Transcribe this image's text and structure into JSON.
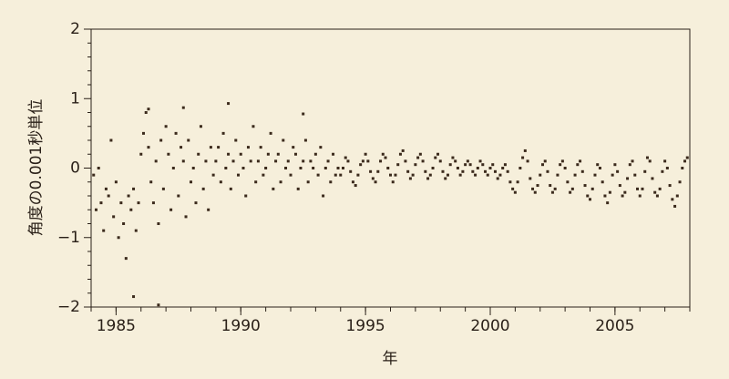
{
  "chart_data": {
    "type": "scatter",
    "ylabel": "角度の0.001秒単位",
    "xlabel": "年",
    "color": "#3b2a1c",
    "background": "#f6efdb",
    "xlim": [
      1984,
      2008
    ],
    "ylim": [
      -2,
      2
    ],
    "xticks": [
      1985,
      1990,
      1995,
      2000,
      2005
    ],
    "yticks": [
      {
        "value": -2,
        "label": "−2"
      },
      {
        "value": -1,
        "label": "−1"
      },
      0,
      1,
      2
    ],
    "xminorticks": [
      1984,
      1985,
      1986,
      1987,
      1988,
      1989,
      1990,
      1991,
      1992,
      1993,
      1994,
      1995,
      1996,
      1997,
      1998,
      1999,
      2000,
      2001,
      2002,
      2003,
      2004,
      2005,
      2006,
      2007,
      2008
    ],
    "yminorticks": [
      -1.8,
      -1.6,
      -1.4,
      -1.2,
      -0.8,
      -0.6,
      -0.4,
      -0.2,
      0.2,
      0.4,
      0.6,
      0.8,
      1.2,
      1.4,
      1.6,
      1.8
    ],
    "x": [
      1984.1,
      1984.2,
      1984.3,
      1984.4,
      1984.5,
      1984.6,
      1984.7,
      1984.8,
      1984.9,
      1985.0,
      1985.1,
      1985.2,
      1985.3,
      1985.4,
      1985.5,
      1985.6,
      1985.7,
      1985.8,
      1985.9,
      1986.0,
      1986.1,
      1986.2,
      1986.3,
      1986.4,
      1986.5,
      1986.6,
      1986.7,
      1986.8,
      1986.9,
      1987.0,
      1987.1,
      1987.2,
      1987.3,
      1987.4,
      1987.5,
      1987.6,
      1987.7,
      1987.8,
      1987.9,
      1988.0,
      1988.1,
      1988.2,
      1988.3,
      1988.4,
      1988.5,
      1988.6,
      1988.7,
      1988.8,
      1988.9,
      1989.0,
      1989.1,
      1989.2,
      1989.3,
      1989.4,
      1989.5,
      1989.6,
      1989.7,
      1989.8,
      1989.9,
      1990.0,
      1990.1,
      1990.2,
      1990.3,
      1990.4,
      1990.5,
      1990.6,
      1990.7,
      1990.8,
      1990.9,
      1991.0,
      1991.1,
      1991.2,
      1991.3,
      1991.4,
      1991.5,
      1991.6,
      1991.7,
      1991.8,
      1991.9,
      1992.0,
      1992.1,
      1992.2,
      1992.3,
      1992.4,
      1992.5,
      1992.6,
      1992.7,
      1992.8,
      1992.9,
      1993.0,
      1993.1,
      1993.2,
      1993.3,
      1993.4,
      1993.5,
      1993.6,
      1993.7,
      1993.8,
      1993.9,
      1994.0,
      1994.1,
      1994.2,
      1994.3,
      1994.4,
      1994.5,
      1994.6,
      1994.7,
      1994.8,
      1994.9,
      1995.0,
      1995.1,
      1995.2,
      1995.3,
      1995.4,
      1995.5,
      1995.6,
      1995.7,
      1995.8,
      1995.9,
      1996.0,
      1996.1,
      1996.2,
      1996.3,
      1996.4,
      1996.5,
      1996.6,
      1996.7,
      1996.8,
      1996.9,
      1997.0,
      1997.1,
      1997.2,
      1997.3,
      1997.4,
      1997.5,
      1997.6,
      1997.7,
      1997.8,
      1997.9,
      1998.0,
      1998.1,
      1998.2,
      1998.3,
      1998.4,
      1998.5,
      1998.6,
      1998.7,
      1998.8,
      1998.9,
      1999.0,
      1999.1,
      1999.2,
      1999.3,
      1999.4,
      1999.5,
      1999.6,
      1999.7,
      1999.8,
      1999.9,
      2000.0,
      2000.1,
      2000.2,
      2000.3,
      2000.4,
      2000.5,
      2000.6,
      2000.7,
      2000.8,
      2000.9,
      2001.0,
      2001.1,
      2001.2,
      2001.3,
      2001.4,
      2001.5,
      2001.6,
      2001.7,
      2001.8,
      2001.9,
      2002.0,
      2002.1,
      2002.2,
      2002.3,
      2002.4,
      2002.5,
      2002.6,
      2002.7,
      2002.8,
      2002.9,
      2003.0,
      2003.1,
      2003.2,
      2003.3,
      2003.4,
      2003.5,
      2003.6,
      2003.7,
      2003.8,
      2003.9,
      2004.0,
      2004.1,
      2004.2,
      2004.3,
      2004.4,
      2004.5,
      2004.6,
      2004.7,
      2004.8,
      2004.9,
      2005.0,
      2005.1,
      2005.2,
      2005.3,
      2005.4,
      2005.5,
      2005.6,
      2005.7,
      2005.8,
      2005.9,
      2006.0,
      2006.1,
      2006.2,
      2006.3,
      2006.4,
      2006.5,
      2006.6,
      2006.7,
      2006.8,
      2006.9,
      2007.0,
      2007.1,
      2007.2,
      2007.3,
      2007.4,
      2007.5,
      2007.6,
      2007.7,
      2007.8,
      2007.9,
      1985.7,
      1986.7,
      1989.5,
      1992.5,
      1987.7,
      1986.3
    ],
    "values": [
      -0.1,
      -0.6,
      0.0,
      -0.5,
      -0.9,
      -0.3,
      -0.4,
      0.4,
      -0.7,
      -0.2,
      -1.0,
      -0.5,
      -0.8,
      -1.3,
      -0.4,
      -0.6,
      -0.3,
      -0.9,
      -0.5,
      0.2,
      0.5,
      0.8,
      0.3,
      -0.2,
      -0.5,
      0.1,
      -0.8,
      0.4,
      -0.3,
      0.6,
      0.2,
      -0.6,
      0.0,
      0.5,
      -0.4,
      0.3,
      0.1,
      -0.7,
      0.4,
      -0.2,
      0.0,
      -0.5,
      0.2,
      0.6,
      -0.3,
      0.1,
      -0.6,
      0.3,
      -0.1,
      0.1,
      0.3,
      -0.2,
      0.5,
      0.0,
      0.2,
      -0.3,
      0.1,
      0.4,
      -0.1,
      0.2,
      0.0,
      -0.4,
      0.3,
      0.1,
      0.6,
      -0.2,
      0.1,
      0.3,
      -0.1,
      0.0,
      0.2,
      0.5,
      -0.3,
      0.1,
      0.2,
      -0.2,
      0.4,
      0.0,
      0.1,
      -0.1,
      0.3,
      0.2,
      -0.3,
      0.0,
      0.1,
      0.4,
      -0.2,
      0.1,
      0.0,
      0.2,
      -0.1,
      0.3,
      -0.4,
      0.0,
      0.1,
      -0.2,
      0.2,
      -0.1,
      0.0,
      -0.1,
      0.0,
      0.15,
      0.1,
      -0.05,
      -0.2,
      -0.25,
      -0.1,
      0.05,
      0.1,
      0.2,
      0.1,
      -0.05,
      -0.15,
      -0.2,
      -0.05,
      0.1,
      0.2,
      0.15,
      0.0,
      -0.1,
      -0.2,
      -0.1,
      0.05,
      0.2,
      0.25,
      0.1,
      -0.05,
      -0.15,
      -0.1,
      0.05,
      0.15,
      0.2,
      0.1,
      -0.05,
      -0.15,
      -0.1,
      0.0,
      0.15,
      0.2,
      0.1,
      -0.05,
      -0.15,
      -0.1,
      0.05,
      0.15,
      0.1,
      0.0,
      -0.1,
      -0.05,
      0.05,
      0.1,
      0.05,
      -0.05,
      -0.1,
      0.0,
      0.1,
      0.05,
      -0.05,
      -0.1,
      0.0,
      0.05,
      -0.05,
      -0.15,
      -0.1,
      0.0,
      0.05,
      -0.05,
      -0.2,
      -0.3,
      -0.35,
      -0.2,
      0.0,
      0.15,
      0.25,
      0.1,
      -0.15,
      -0.3,
      -0.35,
      -0.25,
      -0.1,
      0.05,
      0.1,
      -0.05,
      -0.25,
      -0.35,
      -0.3,
      -0.1,
      0.05,
      0.1,
      0.0,
      -0.2,
      -0.35,
      -0.3,
      -0.1,
      0.05,
      0.1,
      -0.05,
      -0.25,
      -0.4,
      -0.45,
      -0.3,
      -0.1,
      0.05,
      0.0,
      -0.2,
      -0.4,
      -0.5,
      -0.35,
      -0.1,
      0.05,
      -0.05,
      -0.25,
      -0.4,
      -0.35,
      -0.15,
      0.05,
      0.1,
      -0.1,
      -0.3,
      -0.4,
      -0.3,
      -0.05,
      0.15,
      0.1,
      -0.15,
      -0.35,
      -0.4,
      -0.3,
      -0.05,
      0.1,
      0.0,
      -0.25,
      -0.45,
      -0.55,
      -0.4,
      -0.2,
      0.0,
      0.1,
      0.15,
      -1.85,
      -1.97,
      0.93,
      0.78,
      0.87,
      0.85
    ]
  }
}
